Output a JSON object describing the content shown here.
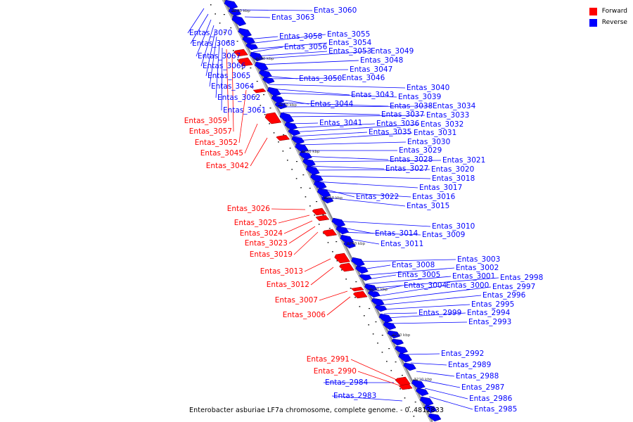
{
  "legend": {
    "forward_label": "Forward",
    "reverse_label": "Reverse",
    "forward_color": "#ff0000",
    "reverse_color": "#0000ff"
  },
  "caption": "Enterobacter asburiae LF7a chromosome, complete genome. - 0..4812833",
  "ticks": [
    "3290 kbp",
    "3280 kbp",
    "3270 kbp",
    "3260 kbp",
    "3250 kbp",
    "3240 kbp",
    "3230 kbp",
    "3220 kbp",
    "3210 kbp"
  ],
  "genes": [
    {
      "id": "Entas_3060",
      "strand": "reverse"
    },
    {
      "id": "Entas_3063",
      "strand": "reverse"
    },
    {
      "id": "Entas_3058",
      "strand": "reverse"
    },
    {
      "id": "Entas_3055",
      "strand": "reverse"
    },
    {
      "id": "Entas_3054",
      "strand": "reverse"
    },
    {
      "id": "Entas_3056",
      "strand": "reverse"
    },
    {
      "id": "Entas_3053",
      "strand": "reverse"
    },
    {
      "id": "Entas_3049",
      "strand": "reverse"
    },
    {
      "id": "Entas_3048",
      "strand": "reverse"
    },
    {
      "id": "Entas_3047",
      "strand": "reverse"
    },
    {
      "id": "Entas_3050",
      "strand": "reverse"
    },
    {
      "id": "Entas_3046",
      "strand": "reverse"
    },
    {
      "id": "Entas_3040",
      "strand": "reverse"
    },
    {
      "id": "Entas_3043",
      "strand": "reverse"
    },
    {
      "id": "Entas_3039",
      "strand": "reverse"
    },
    {
      "id": "Entas_3044",
      "strand": "reverse"
    },
    {
      "id": "Entas_3038",
      "strand": "reverse"
    },
    {
      "id": "Entas_3034",
      "strand": "reverse"
    },
    {
      "id": "Entas_3037",
      "strand": "reverse"
    },
    {
      "id": "Entas_3033",
      "strand": "reverse"
    },
    {
      "id": "Entas_3041",
      "strand": "reverse"
    },
    {
      "id": "Entas_3036",
      "strand": "reverse"
    },
    {
      "id": "Entas_3032",
      "strand": "reverse"
    },
    {
      "id": "Entas_3035",
      "strand": "reverse"
    },
    {
      "id": "Entas_3031",
      "strand": "reverse"
    },
    {
      "id": "Entas_3030",
      "strand": "reverse"
    },
    {
      "id": "Entas_3029",
      "strand": "reverse"
    },
    {
      "id": "Entas_3028",
      "strand": "reverse"
    },
    {
      "id": "Entas_3021",
      "strand": "reverse"
    },
    {
      "id": "Entas_3027",
      "strand": "reverse"
    },
    {
      "id": "Entas_3020",
      "strand": "reverse"
    },
    {
      "id": "Entas_3018",
      "strand": "reverse"
    },
    {
      "id": "Entas_3017",
      "strand": "reverse"
    },
    {
      "id": "Entas_3022",
      "strand": "reverse"
    },
    {
      "id": "Entas_3016",
      "strand": "reverse"
    },
    {
      "id": "Entas_3015",
      "strand": "reverse"
    },
    {
      "id": "Entas_3010",
      "strand": "reverse"
    },
    {
      "id": "Entas_3014",
      "strand": "reverse"
    },
    {
      "id": "Entas_3009",
      "strand": "reverse"
    },
    {
      "id": "Entas_3011",
      "strand": "reverse"
    },
    {
      "id": "Entas_3003",
      "strand": "reverse"
    },
    {
      "id": "Entas_3008",
      "strand": "reverse"
    },
    {
      "id": "Entas_3002",
      "strand": "reverse"
    },
    {
      "id": "Entas_3005",
      "strand": "reverse"
    },
    {
      "id": "Entas_3001",
      "strand": "reverse"
    },
    {
      "id": "Entas_2998",
      "strand": "reverse"
    },
    {
      "id": "Entas_3004",
      "strand": "reverse"
    },
    {
      "id": "Entas_3000",
      "strand": "reverse"
    },
    {
      "id": "Entas_2997",
      "strand": "reverse"
    },
    {
      "id": "Entas_2996",
      "strand": "reverse"
    },
    {
      "id": "Entas_2995",
      "strand": "reverse"
    },
    {
      "id": "Entas_2999",
      "strand": "reverse"
    },
    {
      "id": "Entas_2994",
      "strand": "reverse"
    },
    {
      "id": "Entas_2993",
      "strand": "reverse"
    },
    {
      "id": "Entas_2992",
      "strand": "reverse"
    },
    {
      "id": "Entas_2989",
      "strand": "reverse"
    },
    {
      "id": "Entas_2988",
      "strand": "reverse"
    },
    {
      "id": "Entas_2987",
      "strand": "reverse"
    },
    {
      "id": "Entas_2986",
      "strand": "reverse"
    },
    {
      "id": "Entas_2985",
      "strand": "reverse"
    },
    {
      "id": "Entas_2984",
      "strand": "reverse"
    },
    {
      "id": "Entas_2983",
      "strand": "reverse"
    },
    {
      "id": "Entas_3070",
      "strand": "reverse"
    },
    {
      "id": "Entas_3068",
      "strand": "reverse"
    },
    {
      "id": "Entas_3067",
      "strand": "reverse"
    },
    {
      "id": "Entas_3066",
      "strand": "reverse"
    },
    {
      "id": "Entas_3065",
      "strand": "reverse"
    },
    {
      "id": "Entas_3064",
      "strand": "reverse"
    },
    {
      "id": "Entas_3062",
      "strand": "reverse"
    },
    {
      "id": "Entas_3061",
      "strand": "reverse"
    },
    {
      "id": "Entas_3059",
      "strand": "forward"
    },
    {
      "id": "Entas_3057",
      "strand": "forward"
    },
    {
      "id": "Entas_3052",
      "strand": "forward"
    },
    {
      "id": "Entas_3045",
      "strand": "forward"
    },
    {
      "id": "Entas_3042",
      "strand": "forward"
    },
    {
      "id": "Entas_3026",
      "strand": "forward"
    },
    {
      "id": "Entas_3025",
      "strand": "forward"
    },
    {
      "id": "Entas_3024",
      "strand": "forward"
    },
    {
      "id": "Entas_3023",
      "strand": "forward"
    },
    {
      "id": "Entas_3019",
      "strand": "forward"
    },
    {
      "id": "Entas_3013",
      "strand": "forward"
    },
    {
      "id": "Entas_3012",
      "strand": "forward"
    },
    {
      "id": "Entas_3007",
      "strand": "forward"
    },
    {
      "id": "Entas_3006",
      "strand": "forward"
    },
    {
      "id": "Entas_2991",
      "strand": "forward"
    },
    {
      "id": "Entas_2990",
      "strand": "forward"
    }
  ]
}
